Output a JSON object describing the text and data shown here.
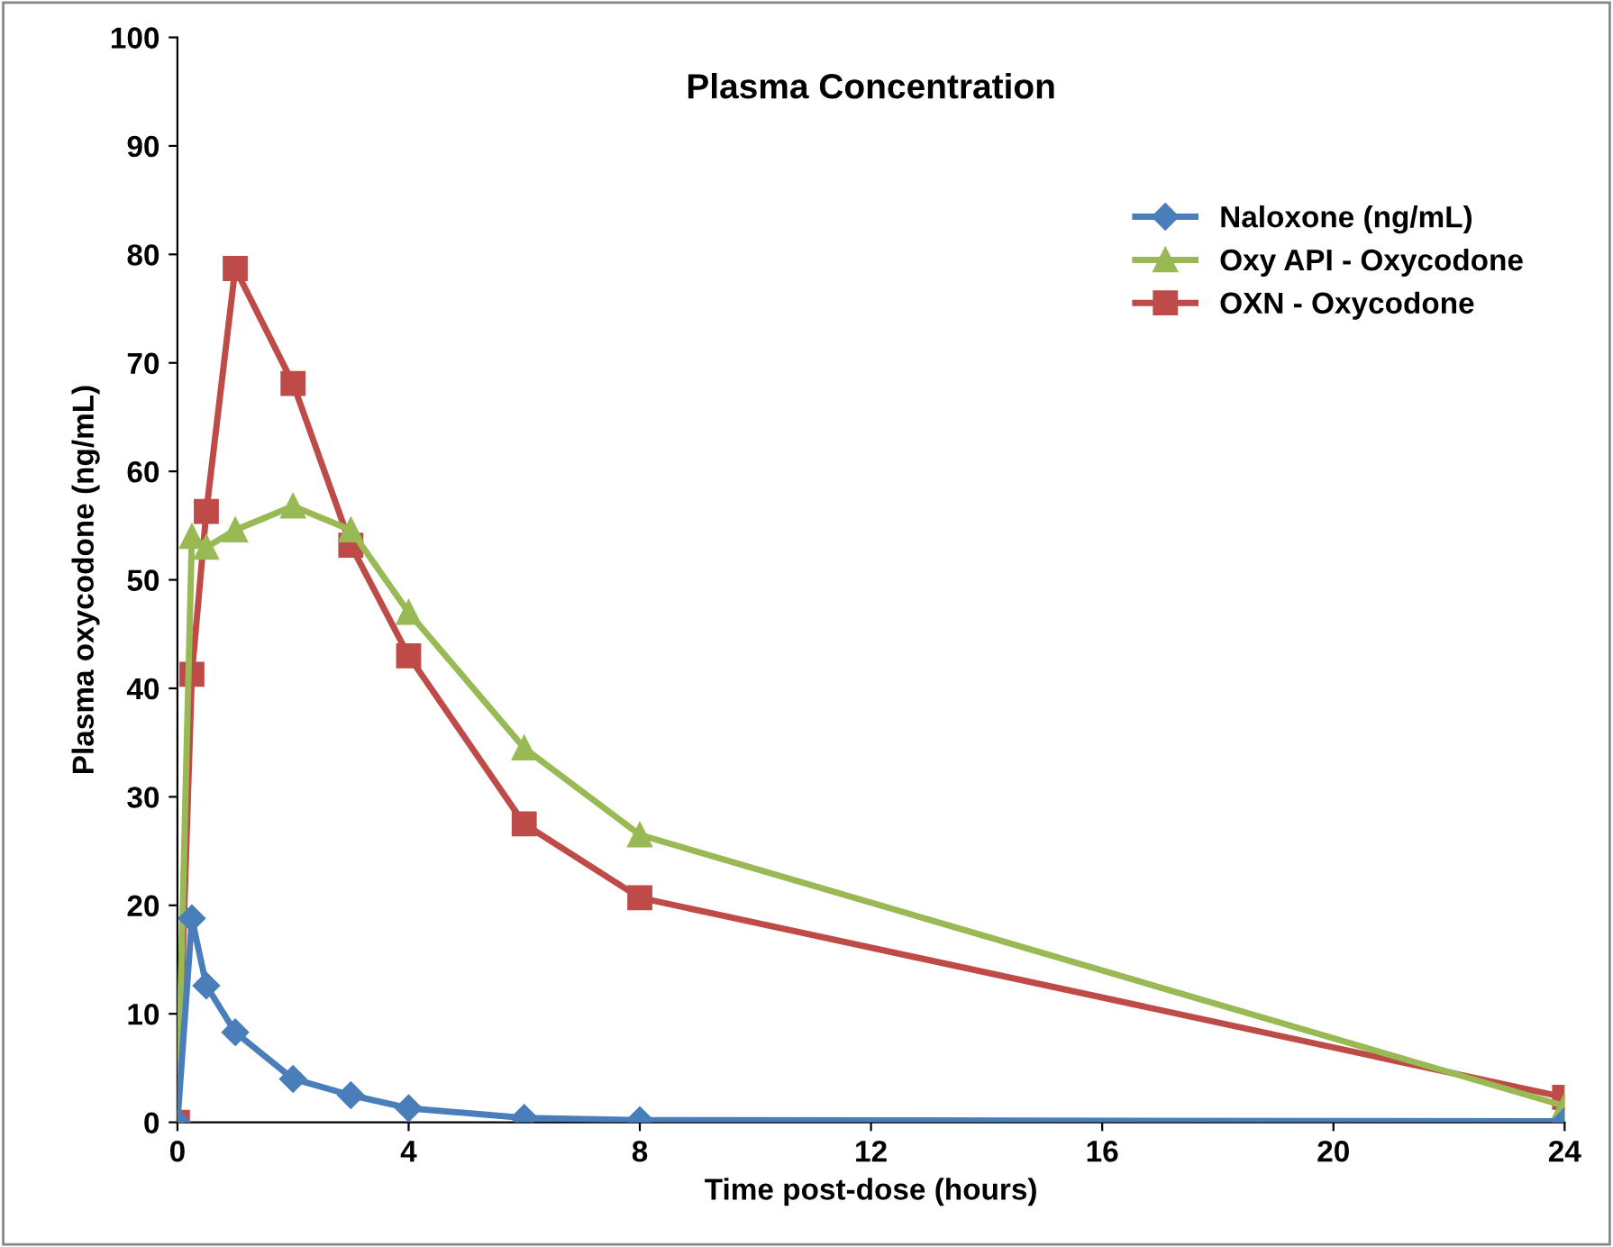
{
  "chart_data": {
    "type": "line",
    "title": "Plasma Concentration",
    "xlabel": "Time post-dose (hours)",
    "ylabel": "Plasma oxycodone (ng/mL)",
    "x": [
      0,
      0.25,
      0.5,
      1,
      2,
      3,
      4,
      6,
      8,
      24
    ],
    "series": [
      {
        "name": "Naloxone (ng/mL)",
        "color": "#4a7ebb",
        "marker": "diamond",
        "values": [
          0,
          18.8,
          12.6,
          8.3,
          4.0,
          2.5,
          1.3,
          0.4,
          0.2,
          0.1
        ]
      },
      {
        "name": "Oxy API - Oxycodone",
        "color": "#98b954",
        "marker": "triangle",
        "values": [
          0,
          54,
          53,
          54.6,
          56.8,
          54.6,
          47,
          34.5,
          26.5,
          1.5
        ]
      },
      {
        "name": "OXN - Oxycodone",
        "color": "#be4b48",
        "marker": "square",
        "values": [
          0,
          41.3,
          56.3,
          78.7,
          68.1,
          53.2,
          43,
          27.5,
          20.7,
          2.3
        ]
      }
    ],
    "xlim": [
      0,
      24
    ],
    "xticks": [
      0,
      4,
      8,
      12,
      16,
      20,
      24
    ],
    "ylim": [
      0,
      100
    ],
    "yticks": [
      0,
      10,
      20,
      30,
      40,
      50,
      60,
      70,
      80,
      90,
      100
    ],
    "grid": false,
    "legend": "top right",
    "line_style": "solid"
  }
}
